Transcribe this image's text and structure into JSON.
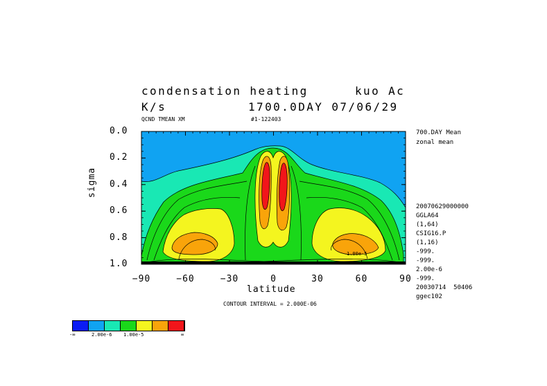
{
  "header": {
    "title_line1_left": "condensation heating",
    "title_line1_right": "kuo Ac",
    "title_line2_left": "K/s",
    "title_line2_right": "1700.0DAY 07/06/29",
    "subtitle_left": "QCND TMEAN XM",
    "subtitle_right": "#1-122403"
  },
  "right_panel": {
    "top_lines": [
      "700.DAY Mean",
      "zonal mean"
    ],
    "meta_lines": [
      "20070629000000",
      "GGLA64",
      "(1,64)",
      "CSIG16.P",
      "(1,16)",
      "-999.",
      "-999.",
      "2.00e-6",
      "-999.",
      "20030714  50406",
      "ggec102"
    ]
  },
  "footer": {
    "contour_interval": "CONTOUR INTERVAL = 2.000E-06"
  },
  "colorbar": {
    "colors": [
      "#0b1cf4",
      "#10a3f2",
      "#19e8b4",
      "#1ad81a",
      "#f4f51f",
      "#f9a40a",
      "#f2151a"
    ],
    "labels": [
      "-∞",
      "2.00e-6",
      "1.00e-5",
      "∞"
    ]
  },
  "chart_data": {
    "type": "heatmap",
    "variable": "condensation heating",
    "units": "K/s",
    "xlabel": "latitude",
    "ylabel": "sigma",
    "xlim": [
      -90,
      90
    ],
    "ylim": [
      1.0,
      0.0
    ],
    "x_ticks": [
      -90,
      -60,
      -30,
      0,
      30,
      60,
      90
    ],
    "x_tick_labels": [
      "−90",
      "−60",
      "−30",
      "0",
      "30",
      "60",
      "90"
    ],
    "y_ticks": [
      0.0,
      0.2,
      0.4,
      0.6,
      0.8,
      1.0
    ],
    "y_tick_labels": [
      "0.0",
      "0.2",
      "0.4",
      "0.6",
      "0.8",
      "1.0"
    ],
    "contour_interval": 2e-06,
    "inline_label": "1.00e-5",
    "features": [
      {
        "name": "tropical-maximum-south",
        "lat": -6,
        "sigma": 0.4,
        "level": "max"
      },
      {
        "name": "tropical-maximum-north",
        "lat": 7,
        "sigma": 0.4,
        "level": "max"
      },
      {
        "name": "midlatitude-maximum-south",
        "lat": -57,
        "sigma": 0.85,
        "level": "high"
      },
      {
        "name": "midlatitude-maximum-north",
        "lat": 53,
        "sigma": 0.85,
        "level": "high"
      }
    ]
  }
}
